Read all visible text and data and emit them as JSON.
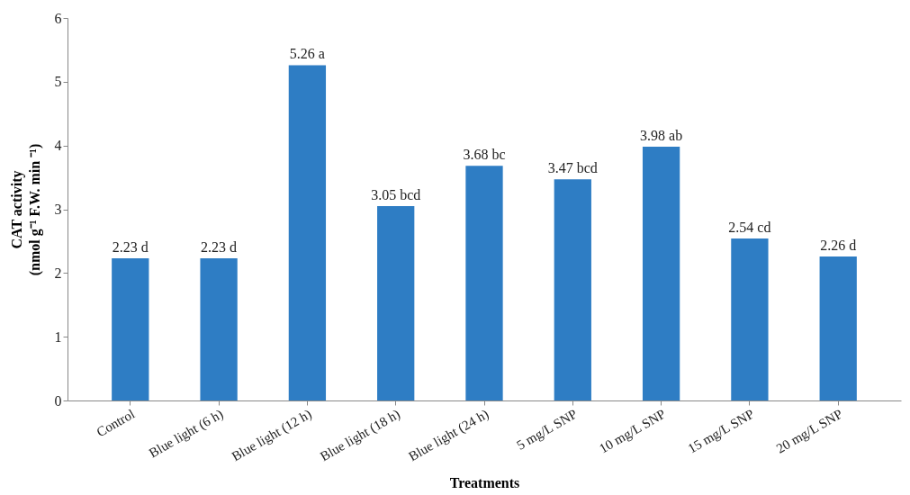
{
  "chart_data": {
    "type": "bar",
    "xlabel": "Treatments",
    "ylabel": "CAT activity\n(nmol g⁻¹ F.W. min ⁻¹)",
    "categories": [
      "Control",
      "Blue light (6 h)",
      "Blue light (12 h)",
      "Blue light (18 h)",
      "Blue light (24 h)",
      "5 mg/L SNP",
      "10 mg/L SNP",
      "15 mg/L SNP",
      "20 mg/L SNP"
    ],
    "values": [
      2.23,
      2.23,
      5.26,
      3.05,
      3.68,
      3.47,
      3.98,
      2.54,
      2.26
    ],
    "value_labels": [
      "2.23 d",
      "2.23 d",
      "5.26 a",
      "3.05 bcd",
      "3.68 bc",
      "3.47 bcd",
      "3.98 ab",
      "2.54 cd",
      "2.26 d"
    ],
    "color": "#2e7dc4",
    "ylim": [
      0,
      6
    ],
    "yticks": [
      0,
      1,
      2,
      3,
      4,
      5,
      6
    ],
    "grid": false
  }
}
